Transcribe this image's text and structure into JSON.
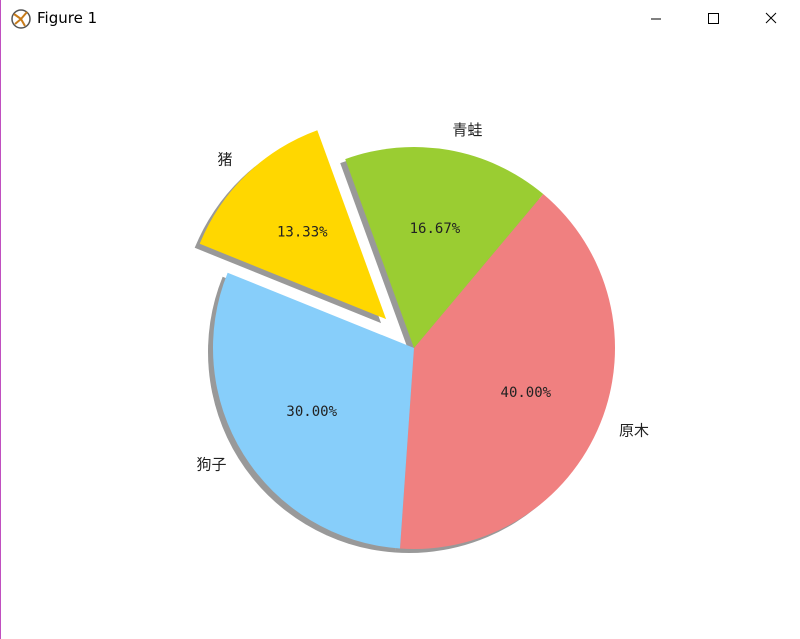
{
  "window_title": "Figure 1",
  "chart_data": {
    "type": "pie",
    "categories": [
      "原木",
      "青蛙",
      "猪",
      "狗子"
    ],
    "values": [
      40.0,
      16.67,
      13.33,
      30.0
    ],
    "value_labels": [
      "40.00%",
      "16.67%",
      "13.33%",
      "30.00%"
    ],
    "colors": [
      "#f08080",
      "#9acd32",
      "#ffd700",
      "#87cefa"
    ],
    "explode": [
      0,
      0,
      0.2,
      0
    ],
    "shadow": true
  }
}
